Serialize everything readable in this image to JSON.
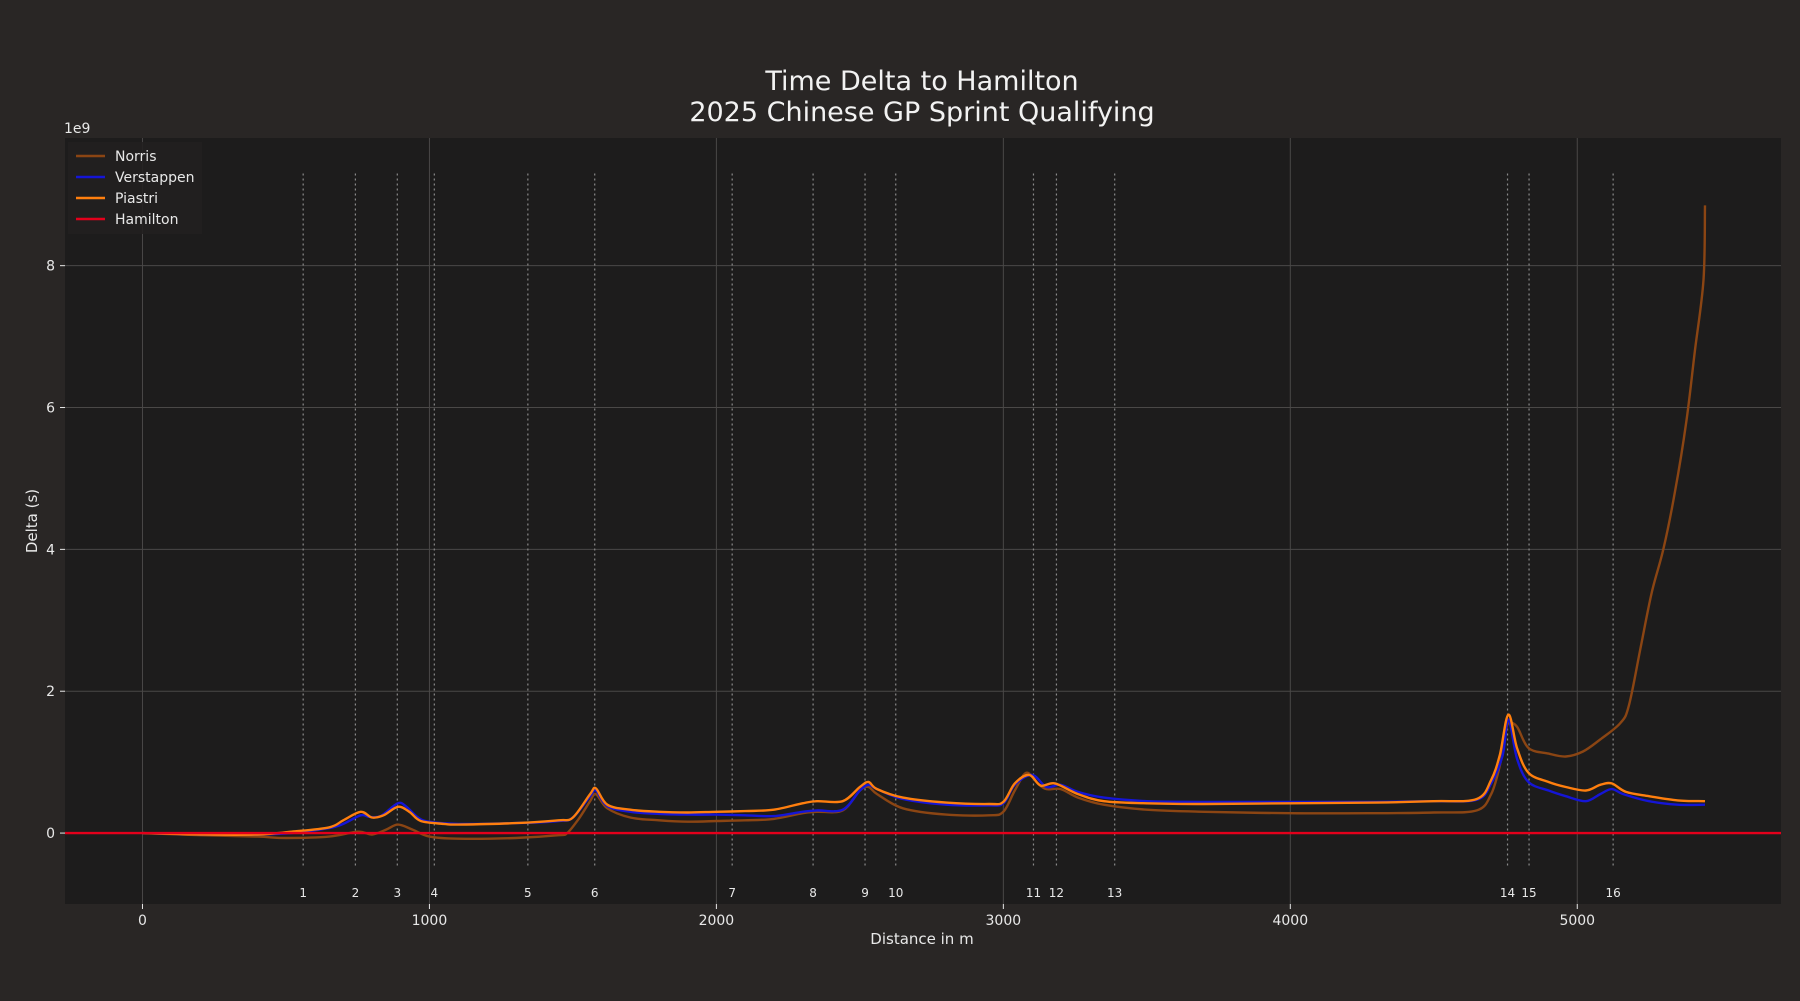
{
  "chart_data": {
    "type": "line",
    "title": "Time Delta to Hamilton",
    "subtitle": "2025 Chinese GP Sprint Qualifying",
    "xlabel": "Distance in m",
    "ylabel": "Delta (s)",
    "y_offset_label": "1e9",
    "xlim": [
      -270,
      5710
    ],
    "ylim": [
      -1.0,
      9.8
    ],
    "xticks": [
      0,
      1000,
      2000,
      3000,
      4000,
      5000
    ],
    "yticks": [
      0,
      2,
      4,
      6,
      8
    ],
    "grid": true,
    "legend_position": "top-left",
    "corners": [
      {
        "label": "1",
        "x": 560
      },
      {
        "label": "2",
        "x": 742
      },
      {
        "label": "3",
        "x": 888
      },
      {
        "label": "4",
        "x": 1017
      },
      {
        "label": "5",
        "x": 1343
      },
      {
        "label": "6",
        "x": 1576
      },
      {
        "label": "7",
        "x": 2055
      },
      {
        "label": "8",
        "x": 2337
      },
      {
        "label": "9",
        "x": 2518
      },
      {
        "label": "10",
        "x": 2625
      },
      {
        "label": "11",
        "x": 3105
      },
      {
        "label": "12",
        "x": 3185
      },
      {
        "label": "13",
        "x": 3388
      },
      {
        "label": "14",
        "x": 4757
      },
      {
        "label": "15",
        "x": 4832
      },
      {
        "label": "16",
        "x": 5125
      }
    ],
    "series": [
      {
        "name": "Norris",
        "color": "#8B4513",
        "points": [
          [
            0,
            0
          ],
          [
            200,
            -0.03
          ],
          [
            400,
            -0.05
          ],
          [
            500,
            -0.07
          ],
          [
            650,
            -0.05
          ],
          [
            750,
            0.02
          ],
          [
            800,
            -0.02
          ],
          [
            850,
            0.05
          ],
          [
            890,
            0.12
          ],
          [
            940,
            0.05
          ],
          [
            1000,
            -0.05
          ],
          [
            1100,
            -0.08
          ],
          [
            1300,
            -0.07
          ],
          [
            1450,
            -0.03
          ],
          [
            1480,
            0.0
          ],
          [
            1520,
            0.2
          ],
          [
            1560,
            0.45
          ],
          [
            1580,
            0.55
          ],
          [
            1620,
            0.35
          ],
          [
            1700,
            0.22
          ],
          [
            1800,
            0.18
          ],
          [
            1900,
            0.16
          ],
          [
            2000,
            0.17
          ],
          [
            2100,
            0.18
          ],
          [
            2200,
            0.2
          ],
          [
            2300,
            0.28
          ],
          [
            2350,
            0.3
          ],
          [
            2440,
            0.32
          ],
          [
            2500,
            0.6
          ],
          [
            2530,
            0.65
          ],
          [
            2560,
            0.55
          ],
          [
            2650,
            0.35
          ],
          [
            2800,
            0.26
          ],
          [
            2950,
            0.25
          ],
          [
            3000,
            0.3
          ],
          [
            3040,
            0.6
          ],
          [
            3080,
            0.85
          ],
          [
            3120,
            0.7
          ],
          [
            3150,
            0.62
          ],
          [
            3200,
            0.62
          ],
          [
            3260,
            0.5
          ],
          [
            3350,
            0.4
          ],
          [
            3500,
            0.33
          ],
          [
            3700,
            0.3
          ],
          [
            4000,
            0.28
          ],
          [
            4300,
            0.28
          ],
          [
            4500,
            0.29
          ],
          [
            4650,
            0.32
          ],
          [
            4700,
            0.55
          ],
          [
            4730,
            0.95
          ],
          [
            4750,
            1.4
          ],
          [
            4760,
            1.55
          ],
          [
            4790,
            1.5
          ],
          [
            4830,
            1.2
          ],
          [
            4900,
            1.12
          ],
          [
            4960,
            1.08
          ],
          [
            5020,
            1.15
          ],
          [
            5080,
            1.32
          ],
          [
            5150,
            1.55
          ],
          [
            5180,
            1.8
          ],
          [
            5220,
            2.6
          ],
          [
            5260,
            3.4
          ],
          [
            5300,
            4.0
          ],
          [
            5340,
            4.8
          ],
          [
            5380,
            5.8
          ],
          [
            5410,
            6.8
          ],
          [
            5440,
            7.8
          ],
          [
            5445,
            8.85
          ]
        ]
      },
      {
        "name": "Verstappen",
        "color": "#1515d6",
        "points": [
          [
            0,
            0
          ],
          [
            200,
            -0.02
          ],
          [
            400,
            -0.02
          ],
          [
            520,
            0.0
          ],
          [
            650,
            0.07
          ],
          [
            700,
            0.13
          ],
          [
            760,
            0.25
          ],
          [
            790,
            0.23
          ],
          [
            830,
            0.24
          ],
          [
            890,
            0.42
          ],
          [
            920,
            0.37
          ],
          [
            960,
            0.22
          ],
          [
            1000,
            0.16
          ],
          [
            1100,
            0.13
          ],
          [
            1300,
            0.14
          ],
          [
            1450,
            0.17
          ],
          [
            1500,
            0.22
          ],
          [
            1560,
            0.52
          ],
          [
            1580,
            0.6
          ],
          [
            1620,
            0.38
          ],
          [
            1700,
            0.3
          ],
          [
            1800,
            0.27
          ],
          [
            1900,
            0.26
          ],
          [
            2000,
            0.26
          ],
          [
            2100,
            0.25
          ],
          [
            2200,
            0.24
          ],
          [
            2300,
            0.3
          ],
          [
            2350,
            0.32
          ],
          [
            2440,
            0.33
          ],
          [
            2500,
            0.6
          ],
          [
            2530,
            0.68
          ],
          [
            2560,
            0.62
          ],
          [
            2650,
            0.48
          ],
          [
            2800,
            0.4
          ],
          [
            2950,
            0.39
          ],
          [
            3000,
            0.42
          ],
          [
            3040,
            0.68
          ],
          [
            3100,
            0.82
          ],
          [
            3150,
            0.65
          ],
          [
            3200,
            0.68
          ],
          [
            3260,
            0.58
          ],
          [
            3350,
            0.5
          ],
          [
            3500,
            0.45
          ],
          [
            3700,
            0.44
          ],
          [
            4000,
            0.44
          ],
          [
            4300,
            0.44
          ],
          [
            4500,
            0.45
          ],
          [
            4650,
            0.47
          ],
          [
            4700,
            0.7
          ],
          [
            4740,
            1.1
          ],
          [
            4760,
            1.6
          ],
          [
            4790,
            1.05
          ],
          [
            4830,
            0.72
          ],
          [
            4900,
            0.6
          ],
          [
            4960,
            0.52
          ],
          [
            5030,
            0.45
          ],
          [
            5080,
            0.55
          ],
          [
            5120,
            0.62
          ],
          [
            5160,
            0.55
          ],
          [
            5250,
            0.45
          ],
          [
            5350,
            0.4
          ],
          [
            5445,
            0.4
          ]
        ]
      },
      {
        "name": "Piastri",
        "color": "#ff7f0e",
        "points": [
          [
            0,
            0
          ],
          [
            200,
            -0.02
          ],
          [
            400,
            -0.02
          ],
          [
            520,
            0.02
          ],
          [
            650,
            0.08
          ],
          [
            700,
            0.18
          ],
          [
            760,
            0.3
          ],
          [
            800,
            0.22
          ],
          [
            840,
            0.25
          ],
          [
            890,
            0.37
          ],
          [
            930,
            0.3
          ],
          [
            970,
            0.17
          ],
          [
            1050,
            0.13
          ],
          [
            1100,
            0.12
          ],
          [
            1300,
            0.14
          ],
          [
            1450,
            0.18
          ],
          [
            1500,
            0.22
          ],
          [
            1560,
            0.55
          ],
          [
            1580,
            0.63
          ],
          [
            1620,
            0.4
          ],
          [
            1700,
            0.33
          ],
          [
            1800,
            0.3
          ],
          [
            1900,
            0.29
          ],
          [
            2000,
            0.3
          ],
          [
            2100,
            0.31
          ],
          [
            2200,
            0.33
          ],
          [
            2300,
            0.42
          ],
          [
            2350,
            0.45
          ],
          [
            2440,
            0.45
          ],
          [
            2500,
            0.65
          ],
          [
            2530,
            0.72
          ],
          [
            2560,
            0.62
          ],
          [
            2650,
            0.5
          ],
          [
            2800,
            0.43
          ],
          [
            2950,
            0.41
          ],
          [
            3000,
            0.44
          ],
          [
            3040,
            0.7
          ],
          [
            3090,
            0.82
          ],
          [
            3130,
            0.67
          ],
          [
            3180,
            0.7
          ],
          [
            3260,
            0.55
          ],
          [
            3350,
            0.45
          ],
          [
            3500,
            0.42
          ],
          [
            3700,
            0.41
          ],
          [
            4000,
            0.42
          ],
          [
            4300,
            0.43
          ],
          [
            4500,
            0.45
          ],
          [
            4650,
            0.48
          ],
          [
            4700,
            0.75
          ],
          [
            4730,
            1.1
          ],
          [
            4760,
            1.67
          ],
          [
            4790,
            1.2
          ],
          [
            4830,
            0.85
          ],
          [
            4900,
            0.72
          ],
          [
            4960,
            0.65
          ],
          [
            5030,
            0.6
          ],
          [
            5080,
            0.68
          ],
          [
            5120,
            0.7
          ],
          [
            5170,
            0.58
          ],
          [
            5250,
            0.52
          ],
          [
            5350,
            0.46
          ],
          [
            5445,
            0.45
          ]
        ]
      },
      {
        "name": "Hamilton",
        "color": "#e3001b",
        "points": [
          [
            -270,
            0
          ],
          [
            5710,
            0
          ]
        ]
      }
    ]
  }
}
